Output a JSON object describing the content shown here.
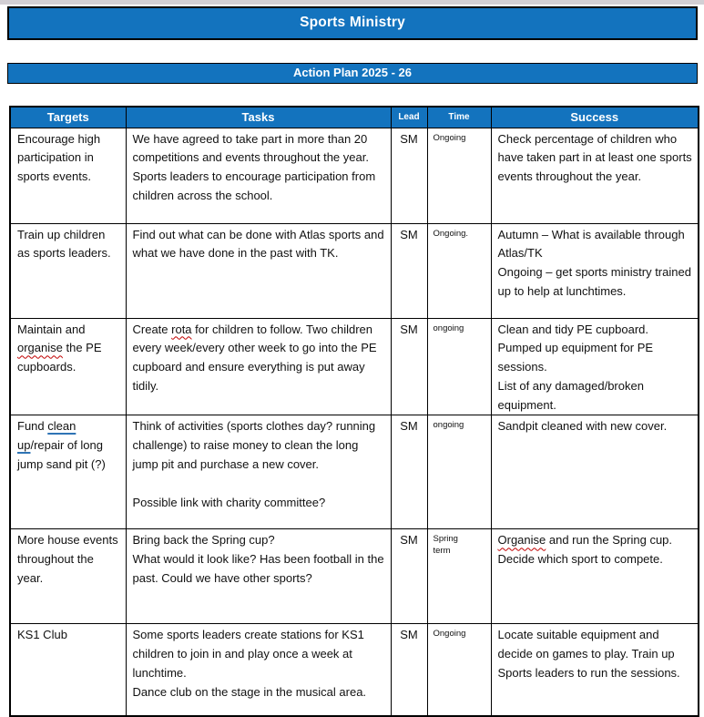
{
  "page": {
    "title": "Sports Ministry",
    "subtitle": "Action Plan 2025 - 26"
  },
  "colors": {
    "banner_blue": "#1373BE",
    "banner_text": "#FFFFFF",
    "border_black": "#000000",
    "spellcheck_red": "#C00000",
    "inserted_underline_blue": "#2E74B5",
    "page_edge_gray": "#D2CFD4"
  },
  "table": {
    "headers": [
      "Targets",
      "Tasks",
      "Lead",
      "Time",
      "Success"
    ],
    "rows": [
      {
        "targets": "Encourage high participation in sports events.",
        "tasks": "We have agreed to take part in more than 20 competitions and events throughout the year. Sports leaders to encourage participation from children across the school.",
        "lead": "SM",
        "time": "Ongoing",
        "success": "Check percentage of children who have taken part in at least one sports events throughout the year."
      },
      {
        "targets": "Train up children as sports leaders.",
        "tasks": "Find out what can be done with Atlas sports and what we have done in the past with TK.",
        "lead": "SM",
        "time": "Ongoing.",
        "success": [
          "Autumn – What is available through Atlas/TK",
          "Ongoing – get sports ministry trained up to help at lunchtimes."
        ]
      },
      {
        "targets": [
          [
            {
              "t": "Maintain and "
            },
            {
              "t": "organise",
              "m": "spell"
            },
            {
              "t": " the PE cupboards."
            }
          ]
        ],
        "tasks": [
          [
            {
              "t": "Create "
            },
            {
              "t": "rota",
              "m": "spell"
            },
            {
              "t": " for children to follow. Two children every week/every other week to go into the PE cupboard and ensure everything is put away tidily."
            }
          ]
        ],
        "lead": "SM",
        "time": "ongoing",
        "success": [
          "Clean and tidy PE cupboard.",
          "Pumped up equipment for PE sessions.",
          "List of any damaged/broken equipment."
        ]
      },
      {
        "targets": [
          [
            {
              "t": "Fund "
            },
            {
              "t": "clean up",
              "m": "ins"
            },
            {
              "t": "/repair of long jump sand pit (?)"
            }
          ]
        ],
        "tasks": [
          "Think of activities (sports clothes day? running challenge) to raise money to clean the long jump pit and purchase a new cover.",
          "",
          "Possible link with charity committee?"
        ],
        "lead": "SM",
        "time": "ongoing",
        "success": "Sandpit cleaned with new cover."
      },
      {
        "targets": "More house events throughout the year.",
        "tasks": [
          "Bring back the Spring cup?",
          "What would it look like? Has been football in the past. Could we have other sports?"
        ],
        "lead": "SM",
        "time": "Spring term",
        "success": [
          [
            {
              "t": "Organise",
              "m": "spell"
            },
            {
              "t": " and run the Spring cup."
            }
          ],
          "Decide which sport to compete."
        ]
      },
      {
        "targets": "KS1 Club",
        "tasks": [
          "Some sports leaders create stations for KS1 children to join in and play once a week at lunchtime.",
          "Dance club on the stage in the musical area."
        ],
        "lead": "SM",
        "time": "Ongoing",
        "success": "Locate suitable equipment and decide on games to play. Train up Sports leaders to run the sessions."
      }
    ]
  }
}
